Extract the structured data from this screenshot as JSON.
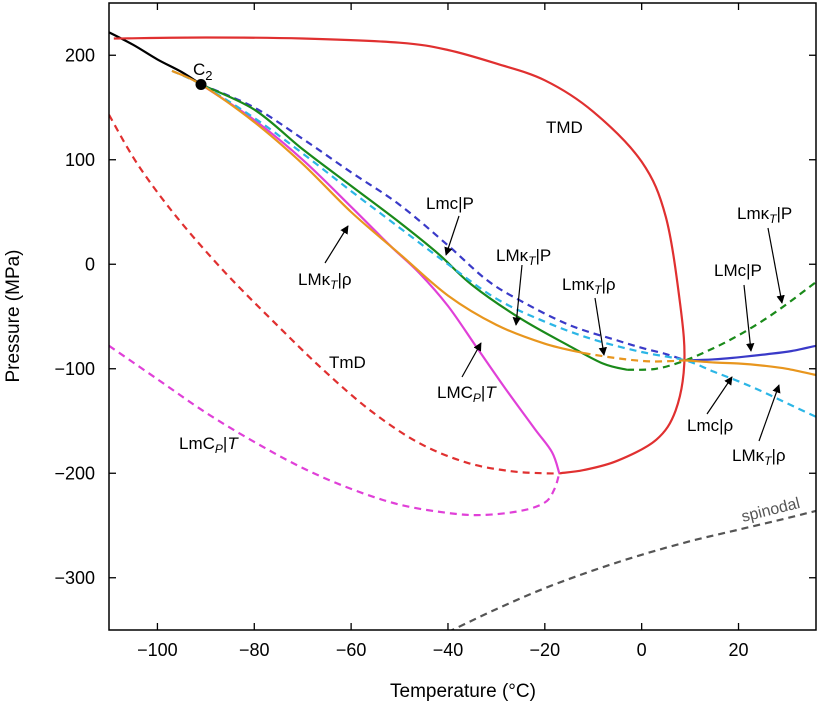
{
  "chart_data": {
    "type": "line",
    "title": "",
    "xlabel": "Temperature (°C)",
    "ylabel": "Pressure (MPa)",
    "xlim": [
      -110,
      36
    ],
    "ylim": [
      -350,
      250
    ],
    "x_ticks": [
      -100,
      -80,
      -60,
      -40,
      -20,
      0,
      20
    ],
    "x_tick_labels": [
      "−100",
      "−80",
      "−60",
      "−40",
      "−20",
      "0",
      "20"
    ],
    "y_ticks": [
      200,
      100,
      0,
      -100,
      -200,
      -300
    ],
    "y_tick_labels": [
      "200",
      "100",
      "0",
      "−100",
      "−200",
      "−300"
    ],
    "grid": false,
    "legend": "none",
    "series": [
      {
        "color": "#000000",
        "style": "solid",
        "points": [
          [
            -110,
            222
          ],
          [
            -105,
            210
          ],
          [
            -100,
            196
          ],
          [
            -95,
            184
          ],
          [
            -91,
            172
          ]
        ]
      },
      {
        "color": "#e03030",
        "style": "solid",
        "points": [
          [
            -109,
            216
          ],
          [
            -90,
            217
          ],
          [
            -70,
            216
          ],
          [
            -50,
            212
          ],
          [
            -40,
            205
          ],
          [
            -30,
            192
          ],
          [
            -20,
            176
          ],
          [
            -10,
            146
          ],
          [
            0,
            98
          ],
          [
            5,
            45
          ],
          [
            8,
            -40
          ],
          [
            8.8,
            -95
          ],
          [
            7,
            -140
          ],
          [
            3,
            -168
          ],
          [
            -5,
            -188
          ],
          [
            -12,
            -197
          ],
          [
            -17,
            -200
          ]
        ]
      },
      {
        "color": "#e03030",
        "style": "dashed",
        "points": [
          [
            -110,
            143
          ],
          [
            -104,
            95
          ],
          [
            -96,
            45
          ],
          [
            -86,
            -8
          ],
          [
            -76,
            -55
          ],
          [
            -66,
            -100
          ],
          [
            -56,
            -140
          ],
          [
            -46,
            -171
          ],
          [
            -36,
            -190
          ],
          [
            -27,
            -198
          ],
          [
            -20,
            -200
          ],
          [
            -17,
            -200
          ]
        ]
      },
      {
        "color": "#e040d8",
        "style": "solid",
        "points": [
          [
            -91,
            172
          ],
          [
            -80,
            138
          ],
          [
            -70,
            100
          ],
          [
            -60,
            55
          ],
          [
            -52,
            18
          ],
          [
            -46,
            -8
          ],
          [
            -40,
            -40
          ],
          [
            -34,
            -80
          ],
          [
            -28,
            -120
          ],
          [
            -22,
            -158
          ],
          [
            -18.5,
            -180
          ],
          [
            -17,
            -200
          ]
        ]
      },
      {
        "color": "#e040d8",
        "style": "dashed",
        "points": [
          [
            -110,
            -78
          ],
          [
            -100,
            -110
          ],
          [
            -90,
            -142
          ],
          [
            -80,
            -170
          ],
          [
            -70,
            -195
          ],
          [
            -60,
            -215
          ],
          [
            -50,
            -230
          ],
          [
            -40,
            -238
          ],
          [
            -33,
            -240
          ],
          [
            -25,
            -236
          ],
          [
            -20,
            -228
          ],
          [
            -18,
            -215
          ],
          [
            -17,
            -200
          ]
        ]
      },
      {
        "color": "#3a3ac8",
        "style": "dashed",
        "points": [
          [
            -91,
            172
          ],
          [
            -80,
            150
          ],
          [
            -70,
            120
          ],
          [
            -60,
            88
          ],
          [
            -50,
            57
          ],
          [
            -40,
            18
          ],
          [
            -32,
            -15
          ],
          [
            -25,
            -35
          ],
          [
            -15,
            -58
          ],
          [
            -5,
            -73
          ],
          [
            0,
            -80
          ],
          [
            5,
            -86
          ],
          [
            9,
            -92
          ]
        ]
      },
      {
        "color": "#3a3ac8",
        "style": "solid",
        "points": [
          [
            9,
            -92
          ],
          [
            15,
            -91
          ],
          [
            20,
            -89
          ],
          [
            26,
            -86
          ],
          [
            31,
            -83
          ],
          [
            36,
            -78
          ]
        ]
      },
      {
        "color": "#1a8a1a",
        "style": "solid",
        "points": [
          [
            -91,
            172
          ],
          [
            -80,
            148
          ],
          [
            -70,
            110
          ],
          [
            -60,
            75
          ],
          [
            -50,
            40
          ],
          [
            -42,
            10
          ],
          [
            -35,
            -20
          ],
          [
            -25,
            -52
          ],
          [
            -15,
            -78
          ],
          [
            -8,
            -95
          ],
          [
            -3,
            -101
          ]
        ]
      },
      {
        "color": "#1a8a1a",
        "style": "dashed",
        "points": [
          [
            -3,
            -101
          ],
          [
            3,
            -100
          ],
          [
            9,
            -92
          ],
          [
            15,
            -80
          ],
          [
            20,
            -68
          ],
          [
            25,
            -54
          ],
          [
            30,
            -38
          ],
          [
            36,
            -17
          ]
        ]
      },
      {
        "color": "#2cb6e6",
        "style": "dashed",
        "points": [
          [
            -97,
            185
          ],
          [
            -91,
            172
          ],
          [
            -80,
            140
          ],
          [
            -70,
            106
          ],
          [
            -60,
            70
          ],
          [
            -50,
            35
          ],
          [
            -40,
            0
          ],
          [
            -30,
            -33
          ],
          [
            -20,
            -55
          ],
          [
            -10,
            -72
          ],
          [
            0,
            -84
          ],
          [
            9,
            -92
          ],
          [
            15,
            -103
          ],
          [
            20,
            -112
          ],
          [
            25,
            -122
          ],
          [
            30,
            -133
          ],
          [
            36,
            -146
          ]
        ]
      },
      {
        "color": "#e8961e",
        "style": "solid",
        "points": [
          [
            -97,
            185
          ],
          [
            -91,
            172
          ],
          [
            -80,
            136
          ],
          [
            -70,
            96
          ],
          [
            -60,
            50
          ],
          [
            -50,
            10
          ],
          [
            -40,
            -30
          ],
          [
            -30,
            -58
          ],
          [
            -20,
            -76
          ],
          [
            -12,
            -85
          ]
        ]
      },
      {
        "color": "#e8961e",
        "style": "dashed",
        "points": [
          [
            -12,
            -85
          ],
          [
            -5,
            -90
          ],
          [
            2,
            -93
          ],
          [
            9,
            -92
          ]
        ]
      },
      {
        "color": "#e8961e",
        "style": "solid",
        "points": [
          [
            9,
            -92
          ],
          [
            15,
            -94
          ],
          [
            20,
            -95
          ],
          [
            25,
            -97
          ],
          [
            30,
            -100
          ],
          [
            36,
            -106
          ]
        ]
      },
      {
        "color": "#555555",
        "style": "dashed",
        "points": [
          [
            -40,
            -352
          ],
          [
            -30,
            -330
          ],
          [
            -20,
            -310
          ],
          [
            -10,
            -293
          ],
          [
            0,
            -278
          ],
          [
            10,
            -265
          ],
          [
            20,
            -254
          ],
          [
            30,
            -243
          ],
          [
            36,
            -236
          ]
        ]
      }
    ],
    "point": {
      "label": "C₂",
      "x": -91,
      "y": 172
    },
    "annotations": [
      {
        "text": "TMD"
      },
      {
        "text": "TmD"
      },
      {
        "text": "LmC"
      },
      {
        "text": "LMC"
      },
      {
        "text": "LMκ"
      },
      {
        "text": "Lmκ"
      },
      {
        "text": "Lmc|P"
      },
      {
        "text": "LMc|P"
      },
      {
        "text": "Lmc|ρ"
      },
      {
        "text": "spinodal"
      }
    ],
    "text_parts": {
      "sub_T": "T",
      "sub_P": "P",
      "bar_rho": "|ρ",
      "bar_P": "|P",
      "bar_T": "|",
      "T_italic": "T"
    }
  }
}
